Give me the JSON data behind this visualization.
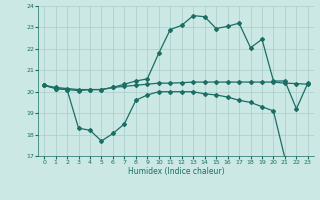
{
  "xlabel": "Humidex (Indice chaleur)",
  "background_color": "#cce8e5",
  "line_color": "#1a6e64",
  "grid_color": "#aaccca",
  "xlim": [
    -0.5,
    23.5
  ],
  "ylim": [
    17,
    24
  ],
  "yticks": [
    17,
    18,
    19,
    20,
    21,
    22,
    23,
    24
  ],
  "xticks": [
    0,
    1,
    2,
    3,
    4,
    5,
    6,
    7,
    8,
    9,
    10,
    11,
    12,
    13,
    14,
    15,
    16,
    17,
    18,
    19,
    20,
    21,
    22,
    23
  ],
  "line1_x": [
    0,
    1,
    2,
    3,
    4,
    5,
    6,
    7,
    8,
    9,
    10,
    11,
    12,
    13,
    14,
    15,
    16,
    17,
    18,
    19,
    20,
    21,
    22,
    23
  ],
  "line1_y": [
    20.3,
    20.15,
    20.1,
    20.05,
    20.1,
    20.1,
    20.2,
    20.35,
    20.5,
    20.6,
    21.8,
    22.9,
    23.1,
    23.55,
    23.5,
    22.95,
    23.05,
    23.2,
    22.05,
    22.45,
    20.5,
    20.5,
    19.2,
    20.4
  ],
  "line2_x": [
    0,
    1,
    2,
    3,
    4,
    5,
    6,
    7,
    8,
    9,
    10,
    11,
    12,
    13,
    14,
    15,
    16,
    17,
    18,
    19,
    20,
    21,
    22,
    23
  ],
  "line2_y": [
    20.3,
    20.2,
    20.15,
    20.1,
    20.1,
    20.1,
    20.2,
    20.25,
    20.3,
    20.35,
    20.4,
    20.4,
    20.42,
    20.45,
    20.45,
    20.45,
    20.45,
    20.45,
    20.45,
    20.45,
    20.45,
    20.4,
    20.38,
    20.35
  ],
  "line3_x": [
    0,
    1,
    2,
    3,
    4,
    5,
    6,
    7,
    8,
    9,
    10,
    11,
    12,
    13,
    14,
    15,
    16,
    17,
    18,
    19,
    20,
    21,
    22,
    23
  ],
  "line3_y": [
    20.3,
    20.15,
    20.1,
    18.3,
    18.2,
    17.7,
    18.05,
    18.5,
    19.6,
    19.85,
    20.0,
    20.0,
    20.0,
    20.0,
    19.9,
    19.85,
    19.75,
    19.6,
    19.5,
    19.3,
    19.1,
    16.9,
    16.85,
    16.85
  ]
}
